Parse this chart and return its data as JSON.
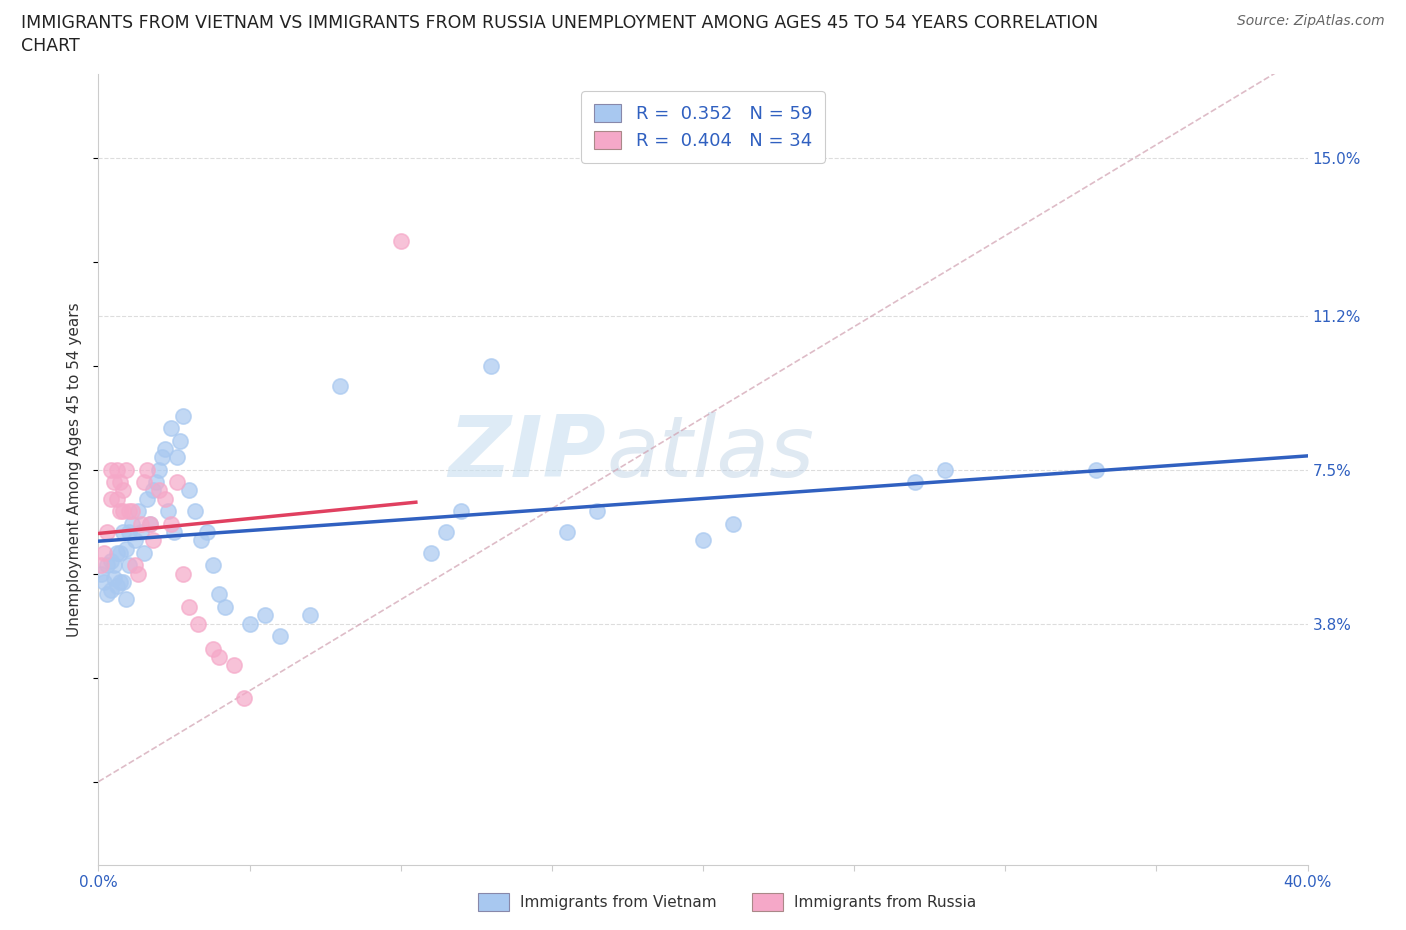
{
  "title_line1": "IMMIGRANTS FROM VIETNAM VS IMMIGRANTS FROM RUSSIA UNEMPLOYMENT AMONG AGES 45 TO 54 YEARS CORRELATION",
  "title_line2": "CHART",
  "source_text": "Source: ZipAtlas.com",
  "ylabel": "Unemployment Among Ages 45 to 54 years",
  "xlim": [
    0.0,
    0.4
  ],
  "ylim": [
    -0.02,
    0.17
  ],
  "xticks": [
    0.0,
    0.05,
    0.1,
    0.15,
    0.2,
    0.25,
    0.3,
    0.35,
    0.4
  ],
  "xticklabels": [
    "0.0%",
    "",
    "",
    "",
    "",
    "",
    "",
    "",
    "40.0%"
  ],
  "ytick_positions": [
    0.038,
    0.075,
    0.112,
    0.15
  ],
  "ytick_labels": [
    "3.8%",
    "7.5%",
    "11.2%",
    "15.0%"
  ],
  "R_vietnam": 0.352,
  "N_vietnam": 59,
  "R_russia": 0.404,
  "N_russia": 34,
  "color_vietnam": "#a8c8f0",
  "color_russia": "#f5a8c8",
  "line_color_vietnam": "#3060c0",
  "line_color_russia": "#e04060",
  "line_color_diag": "#d0a0b0",
  "watermark_zip": "ZIP",
  "watermark_atlas": "atlas",
  "background_color": "#ffffff",
  "vietnam_x": [
    0.001,
    0.002,
    0.003,
    0.003,
    0.004,
    0.004,
    0.005,
    0.005,
    0.006,
    0.006,
    0.007,
    0.007,
    0.008,
    0.008,
    0.009,
    0.009,
    0.01,
    0.01,
    0.011,
    0.012,
    0.013,
    0.014,
    0.015,
    0.016,
    0.017,
    0.018,
    0.019,
    0.02,
    0.021,
    0.022,
    0.023,
    0.024,
    0.025,
    0.026,
    0.027,
    0.028,
    0.03,
    0.032,
    0.034,
    0.036,
    0.038,
    0.04,
    0.042,
    0.05,
    0.055,
    0.06,
    0.07,
    0.08,
    0.11,
    0.115,
    0.12,
    0.13,
    0.155,
    0.165,
    0.2,
    0.21,
    0.27,
    0.28,
    0.33
  ],
  "vietnam_y": [
    0.05,
    0.048,
    0.052,
    0.045,
    0.053,
    0.046,
    0.052,
    0.049,
    0.055,
    0.047,
    0.055,
    0.048,
    0.06,
    0.048,
    0.056,
    0.044,
    0.06,
    0.052,
    0.062,
    0.058,
    0.065,
    0.06,
    0.055,
    0.068,
    0.062,
    0.07,
    0.072,
    0.075,
    0.078,
    0.08,
    0.065,
    0.085,
    0.06,
    0.078,
    0.082,
    0.088,
    0.07,
    0.065,
    0.058,
    0.06,
    0.052,
    0.045,
    0.042,
    0.038,
    0.04,
    0.035,
    0.04,
    0.095,
    0.055,
    0.06,
    0.065,
    0.1,
    0.06,
    0.065,
    0.058,
    0.062,
    0.072,
    0.075,
    0.075
  ],
  "russia_x": [
    0.001,
    0.002,
    0.003,
    0.004,
    0.004,
    0.005,
    0.006,
    0.006,
    0.007,
    0.007,
    0.008,
    0.008,
    0.009,
    0.01,
    0.011,
    0.012,
    0.013,
    0.014,
    0.015,
    0.016,
    0.017,
    0.018,
    0.02,
    0.022,
    0.024,
    0.026,
    0.028,
    0.03,
    0.033,
    0.038,
    0.04,
    0.045,
    0.048,
    0.1
  ],
  "russia_y": [
    0.052,
    0.055,
    0.06,
    0.068,
    0.075,
    0.072,
    0.068,
    0.075,
    0.072,
    0.065,
    0.07,
    0.065,
    0.075,
    0.065,
    0.065,
    0.052,
    0.05,
    0.062,
    0.072,
    0.075,
    0.062,
    0.058,
    0.07,
    0.068,
    0.062,
    0.072,
    0.05,
    0.042,
    0.038,
    0.032,
    0.03,
    0.028,
    0.02,
    0.13
  ],
  "legend_label1": "R =  0.352   N = 59",
  "legend_label2": "R =  0.404   N = 34",
  "bottom_label1": "Immigrants from Vietnam",
  "bottom_label2": "Immigrants from Russia"
}
